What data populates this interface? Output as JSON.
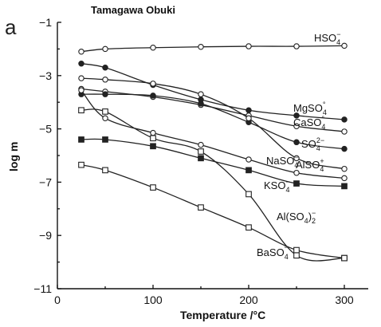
{
  "panel_letter": "a",
  "chart_data": {
    "type": "line",
    "title": "Tamagawa Obuki",
    "xlabel": "Temperature /°C",
    "ylabel": "log m",
    "xlim": [
      0,
      325
    ],
    "ylim": [
      -11,
      -1
    ],
    "xticks": [
      0,
      100,
      200,
      300
    ],
    "yticks": [
      -1,
      -3,
      -5,
      -7,
      -9,
      -11
    ],
    "grid": false,
    "legend": "labels placed next to curves",
    "series": [
      {
        "name": "HSO4−",
        "marker": "open-circle",
        "label_text": "HSO",
        "label_sub": "4",
        "label_sup": "−",
        "x": [
          25,
          50,
          100,
          150,
          200,
          250,
          300
        ],
        "y": [
          -2.1,
          -2.0,
          -1.95,
          -1.92,
          -1.9,
          -1.9,
          -1.88
        ]
      },
      {
        "name": "MgSO4°",
        "marker": "filled-circle",
        "label_text": "MgSO",
        "label_sub": "4",
        "label_sup": "°",
        "x": [
          25,
          50,
          100,
          150,
          200,
          250,
          300
        ],
        "y": [
          -2.55,
          -2.7,
          -3.35,
          -3.9,
          -4.3,
          -4.5,
          -4.65
        ]
      },
      {
        "name": "CaSO4°",
        "marker": "open-circle",
        "label_text": "CaSO",
        "label_sub": "4",
        "label_sup": "°",
        "x": [
          25,
          50,
          100,
          150,
          200,
          250,
          300
        ],
        "y": [
          -3.5,
          -3.6,
          -3.8,
          -4.1,
          -4.5,
          -4.9,
          -5.1
        ]
      },
      {
        "name": "SO4 2−",
        "marker": "filled-circle",
        "label_text": "SO",
        "label_sub": "4",
        "label_sup": "2−",
        "x": [
          25,
          50,
          100,
          150,
          200,
          250,
          300
        ],
        "y": [
          -3.7,
          -3.7,
          -3.75,
          -4.05,
          -4.75,
          -5.5,
          -5.75
        ]
      },
      {
        "name": "AlSO4+",
        "marker": "open-circle",
        "label_text": "AlSO",
        "label_sub": "4",
        "label_sup": "+",
        "x": [
          25,
          50,
          100,
          150,
          200,
          250,
          300
        ],
        "y": [
          -3.1,
          -3.15,
          -3.3,
          -3.7,
          -4.6,
          -6.1,
          -6.5
        ]
      },
      {
        "name": "NaSO4−",
        "marker": "open-circle",
        "label_text": "NaSO",
        "label_sub": "4",
        "label_sup": "−",
        "x": [
          25,
          50,
          100,
          150,
          200,
          250,
          300
        ],
        "y": [
          -3.55,
          -4.6,
          -5.15,
          -5.6,
          -6.15,
          -6.65,
          -6.85
        ]
      },
      {
        "name": "KSO4−",
        "marker": "filled-square",
        "label_text": "KSO",
        "label_sub": "4",
        "label_sup": "−",
        "x": [
          25,
          50,
          100,
          150,
          200,
          250,
          300
        ],
        "y": [
          -5.4,
          -5.4,
          -5.65,
          -6.1,
          -6.55,
          -7.05,
          -7.15
        ]
      },
      {
        "name": "Al(SO4)2−",
        "marker": "open-square",
        "label_text": "Al(SO",
        "label_sub": "4",
        "label_after": ")",
        "label_sub2": "2",
        "label_sup": "−",
        "x": [
          25,
          50,
          100,
          150,
          200,
          250,
          300
        ],
        "y": [
          -4.3,
          -4.35,
          -5.35,
          -5.85,
          -7.45,
          -9.75,
          -9.85
        ]
      },
      {
        "name": "BaSO4°",
        "marker": "open-square",
        "label_text": "BaSO",
        "label_sub": "4",
        "label_sup": "°",
        "x": [
          25,
          50,
          100,
          150,
          200,
          250,
          300
        ],
        "y": [
          -6.35,
          -6.55,
          -7.2,
          -7.95,
          -8.7,
          -9.55,
          -9.85
        ]
      }
    ]
  }
}
